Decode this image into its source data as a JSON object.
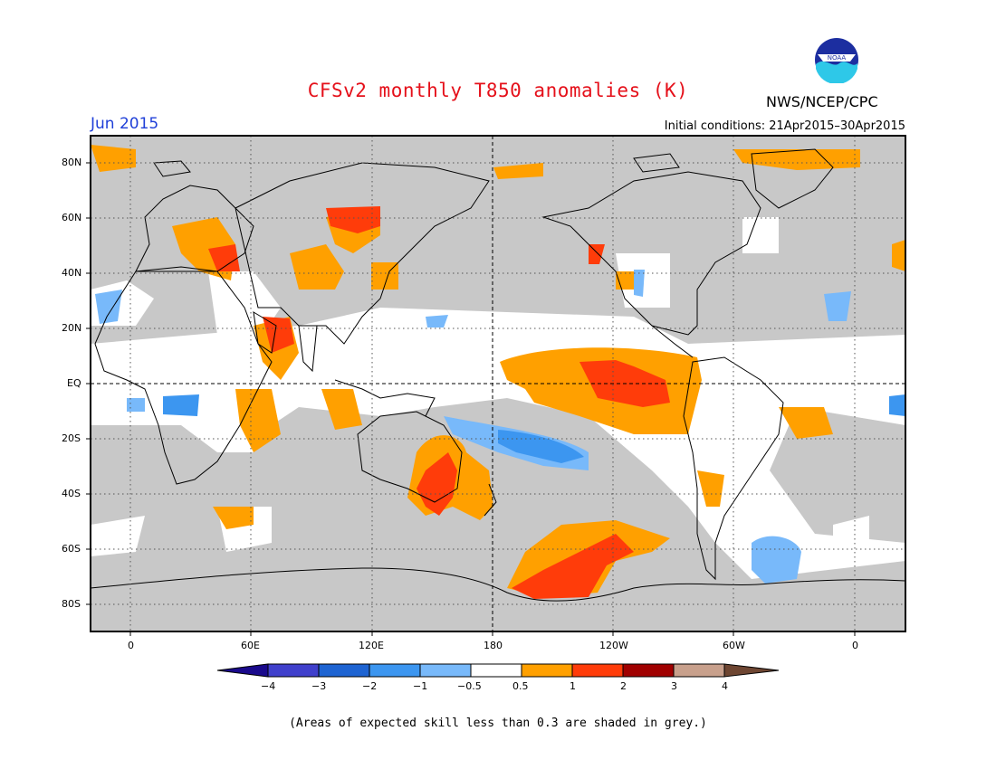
{
  "header": {
    "title": "CFSv2 monthly T850 anomalies (K)",
    "agency": "NWS/NCEP/CPC",
    "valid_month": "Jun 2015",
    "initial_conditions": "Initial conditions: 21Apr2015–30Apr2015",
    "logo_text": "NOAA"
  },
  "map": {
    "lat_labels": [
      "80N",
      "60N",
      "40N",
      "20N",
      "EQ",
      "20S",
      "40S",
      "60S",
      "80S"
    ],
    "lon_labels": [
      "0",
      "60E",
      "120E",
      "180",
      "120W",
      "60W",
      "0"
    ]
  },
  "colorbar": {
    "tick_labels": [
      "−4",
      "−3",
      "−2",
      "−1",
      "−0.5",
      "0.5",
      "1",
      "2",
      "3",
      "4"
    ],
    "colors": [
      "#1a0a8c",
      "#4040cc",
      "#1e64d2",
      "#3c96f0",
      "#78b9fa",
      "#ffffff",
      "#ffa000",
      "#ff3c0a",
      "#a00000",
      "#c8a08c",
      "#6e4632"
    ]
  },
  "colors": {
    "title": "#e5101a",
    "valid_month": "#1f3fd8",
    "land_grey": "#c8c8c8"
  },
  "footnote": "(Areas of expected skill less than 0.3 are shaded in grey.)"
}
